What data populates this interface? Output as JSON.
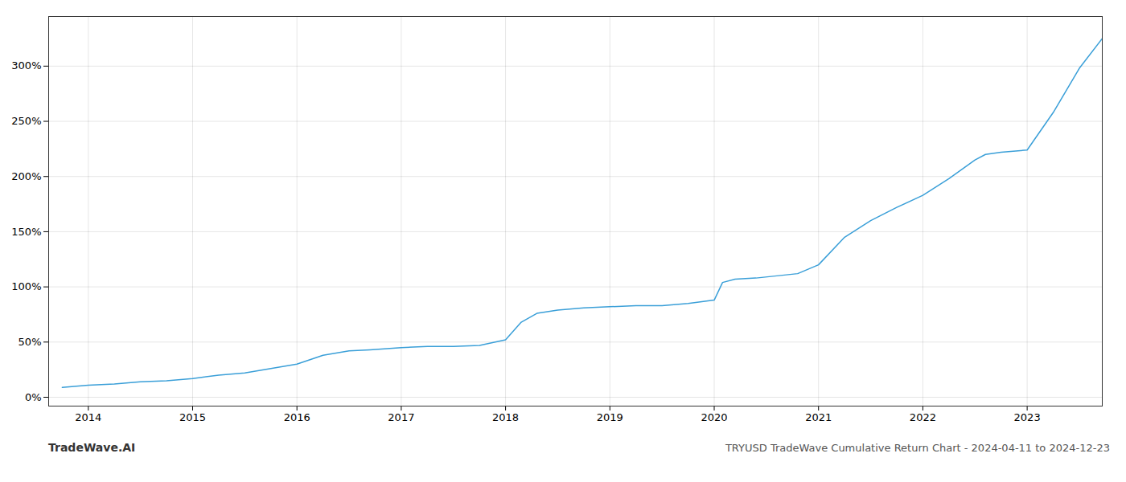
{
  "chart_data": {
    "type": "line",
    "title": "TRYUSD TradeWave Cumulative Return Chart - 2024-04-11 to 2024-12-23",
    "annotations": [
      "TradeWave.AI"
    ],
    "x": [
      2013.75,
      2014.0,
      2014.25,
      2014.5,
      2014.75,
      2015.0,
      2015.25,
      2015.5,
      2015.75,
      2016.0,
      2016.25,
      2016.5,
      2016.7,
      2017.0,
      2017.25,
      2017.5,
      2017.75,
      2018.0,
      2018.15,
      2018.3,
      2018.5,
      2018.75,
      2019.0,
      2019.25,
      2019.5,
      2019.75,
      2020.0,
      2020.08,
      2020.2,
      2020.4,
      2020.6,
      2020.8,
      2021.0,
      2021.25,
      2021.5,
      2021.75,
      2022.0,
      2022.25,
      2022.5,
      2022.6,
      2022.75,
      2023.0,
      2023.25,
      2023.5,
      2023.72
    ],
    "values": [
      9,
      11,
      12,
      14,
      15,
      17,
      20,
      22,
      26,
      30,
      38,
      42,
      43,
      45,
      46,
      46,
      47,
      52,
      68,
      76,
      79,
      81,
      82,
      83,
      83,
      85,
      88,
      104,
      107,
      108,
      110,
      112,
      120,
      145,
      160,
      172,
      183,
      198,
      215,
      220,
      222,
      224,
      258,
      298,
      325
    ],
    "color": "#3a9fd8",
    "xlim": [
      2013.62,
      2023.72
    ],
    "xticks": [
      2014,
      2015,
      2016,
      2017,
      2018,
      2019,
      2020,
      2021,
      2022,
      2023
    ],
    "ylim": [
      -8,
      345
    ],
    "yticks": [
      {
        "value": 0,
        "label": "0%"
      },
      {
        "value": 50,
        "label": "50%"
      },
      {
        "value": 100,
        "label": "100%"
      },
      {
        "value": 150,
        "label": "150%"
      },
      {
        "value": 200,
        "label": "200%"
      },
      {
        "value": 250,
        "label": "250%"
      },
      {
        "value": 300,
        "label": "300%"
      }
    ],
    "grid": true
  }
}
